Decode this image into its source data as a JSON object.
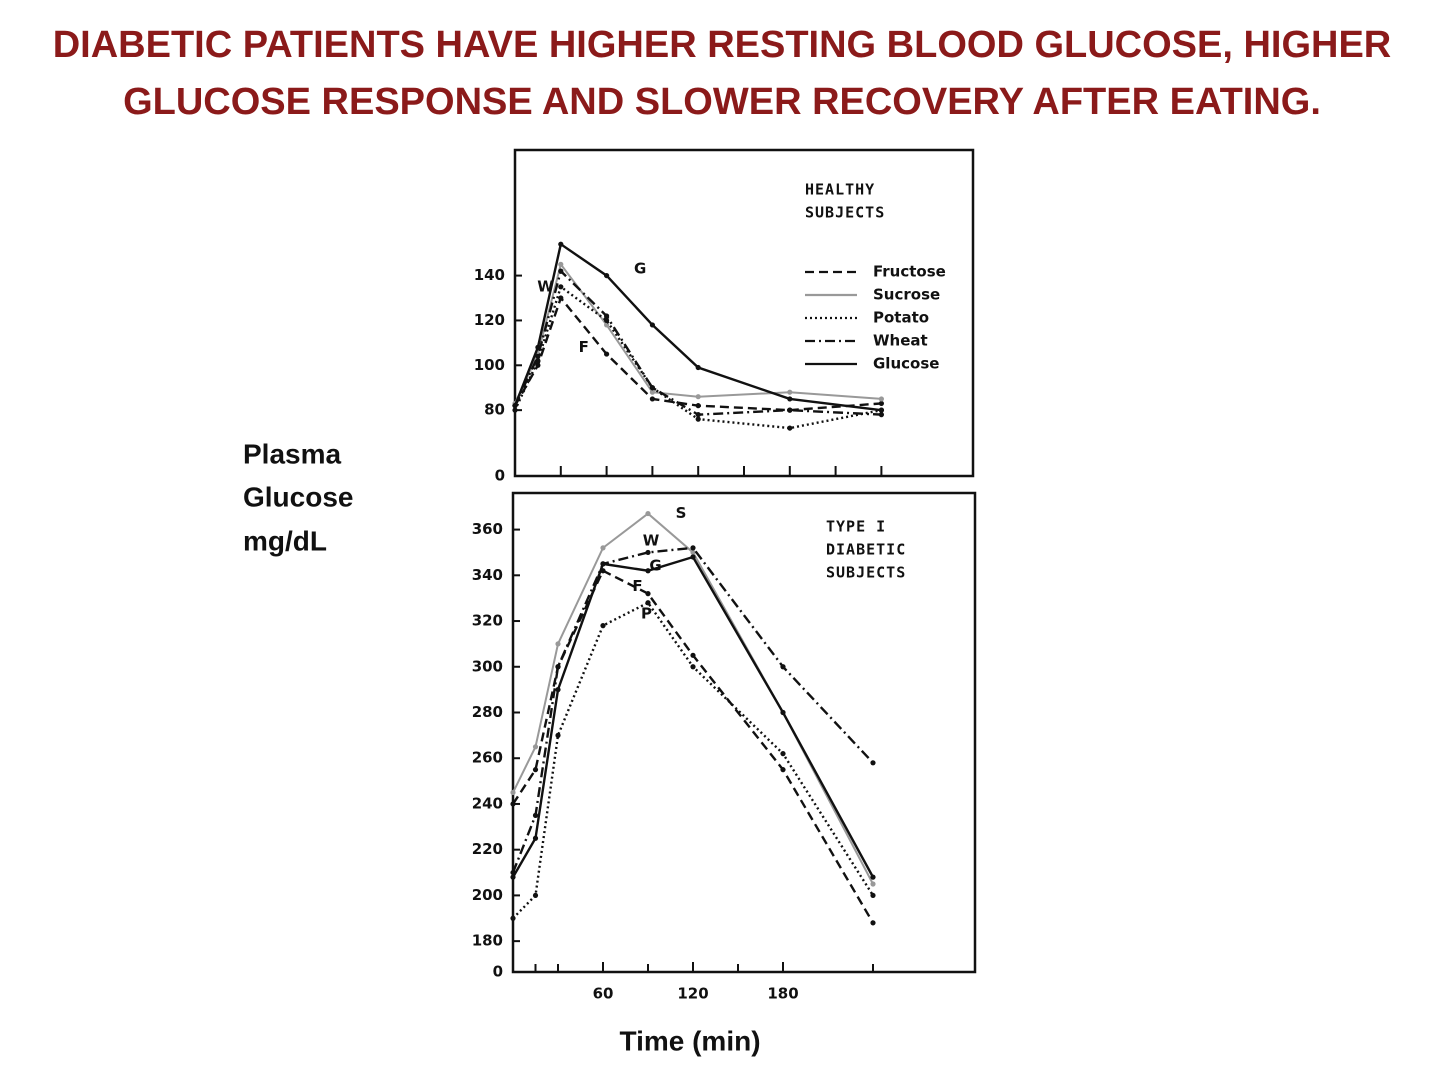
{
  "title": [
    "DIABETIC PATIENTS HAVE HIGHER RESTING BLOOD GLUCOSE, HIGHER",
    "GLUCOSE RESPONSE AND SLOWER RECOVERY AFTER EATING."
  ],
  "ylabel": [
    "Plasma",
    "Glucose",
    "mg/dL"
  ],
  "xlabel": "Time (min)",
  "chart_data": [
    {
      "type": "line",
      "panel_label": [
        "HEALTHY",
        "SUBJECTS"
      ],
      "x": [
        0,
        15,
        30,
        60,
        90,
        120,
        180,
        240
      ],
      "xlim": [
        0,
        300
      ],
      "xticks": [
        30,
        60,
        90,
        120,
        150,
        180,
        210,
        240
      ],
      "xticklabels": false,
      "ylim": [
        0,
        196
      ],
      "ybreak": [
        0,
        60
      ],
      "yticks": [
        0,
        80,
        100,
        120,
        140
      ],
      "legend": "upper right",
      "series": [
        {
          "name": "Fructose",
          "color": "#111",
          "style": "dashed",
          "values": [
            82,
            100,
            130,
            105,
            85,
            82,
            80,
            83
          ]
        },
        {
          "name": "Sucrose",
          "color": "#999",
          "style": "solid",
          "values": [
            83,
            105,
            145,
            118,
            88,
            86,
            88,
            85
          ]
        },
        {
          "name": "Potato",
          "color": "#111",
          "style": "dotted",
          "values": [
            80,
            102,
            135,
            120,
            90,
            76,
            72,
            80
          ]
        },
        {
          "name": "Wheat",
          "color": "#111",
          "style": "dashdot",
          "values": [
            82,
            104,
            142,
            122,
            90,
            78,
            80,
            78
          ]
        },
        {
          "name": "Glucose",
          "color": "#111",
          "style": "solid",
          "values": [
            82,
            108,
            154,
            140,
            118,
            99,
            85,
            80
          ]
        }
      ],
      "annotations": [
        {
          "text": "G",
          "x": 82,
          "y": 143
        },
        {
          "text": "W",
          "x": 20,
          "y": 135
        },
        {
          "text": "F",
          "x": 45,
          "y": 108
        }
      ]
    },
    {
      "type": "line",
      "panel_label": [
        "TYPE I",
        "DIABETIC",
        "SUBJECTS"
      ],
      "x": [
        0,
        15,
        30,
        60,
        90,
        120,
        180,
        240
      ],
      "xlim": [
        0,
        308
      ],
      "xticks": [
        60,
        120,
        180
      ],
      "xminorticks": [
        15,
        30,
        90,
        150,
        240
      ],
      "ylim": [
        0,
        376
      ],
      "ybreak": [
        0,
        170
      ],
      "yticks": [
        0,
        180,
        200,
        220,
        240,
        260,
        280,
        300,
        320,
        340,
        360
      ],
      "series": [
        {
          "name": "Sucrose",
          "color": "#999",
          "style": "solid",
          "values": [
            245,
            265,
            310,
            352,
            367,
            350,
            280,
            205
          ]
        },
        {
          "name": "Wheat",
          "color": "#111",
          "style": "dashdot",
          "values": [
            210,
            235,
            300,
            345,
            350,
            352,
            300,
            258
          ]
        },
        {
          "name": "Glucose",
          "color": "#111",
          "style": "solid",
          "values": [
            208,
            225,
            290,
            345,
            342,
            348,
            280,
            208
          ]
        },
        {
          "name": "Fructose",
          "color": "#111",
          "style": "dashed",
          "values": [
            240,
            255,
            300,
            342,
            332,
            305,
            255,
            188
          ]
        },
        {
          "name": "Potato",
          "color": "#111",
          "style": "dotted",
          "values": [
            190,
            200,
            270,
            318,
            328,
            300,
            262,
            200
          ]
        }
      ],
      "annotations": [
        {
          "text": "S",
          "x": 112,
          "y": 367
        },
        {
          "text": "W",
          "x": 92,
          "y": 355
        },
        {
          "text": "G",
          "x": 95,
          "y": 344
        },
        {
          "text": "F",
          "x": 83,
          "y": 335
        },
        {
          "text": "P",
          "x": 89,
          "y": 323
        }
      ]
    }
  ]
}
